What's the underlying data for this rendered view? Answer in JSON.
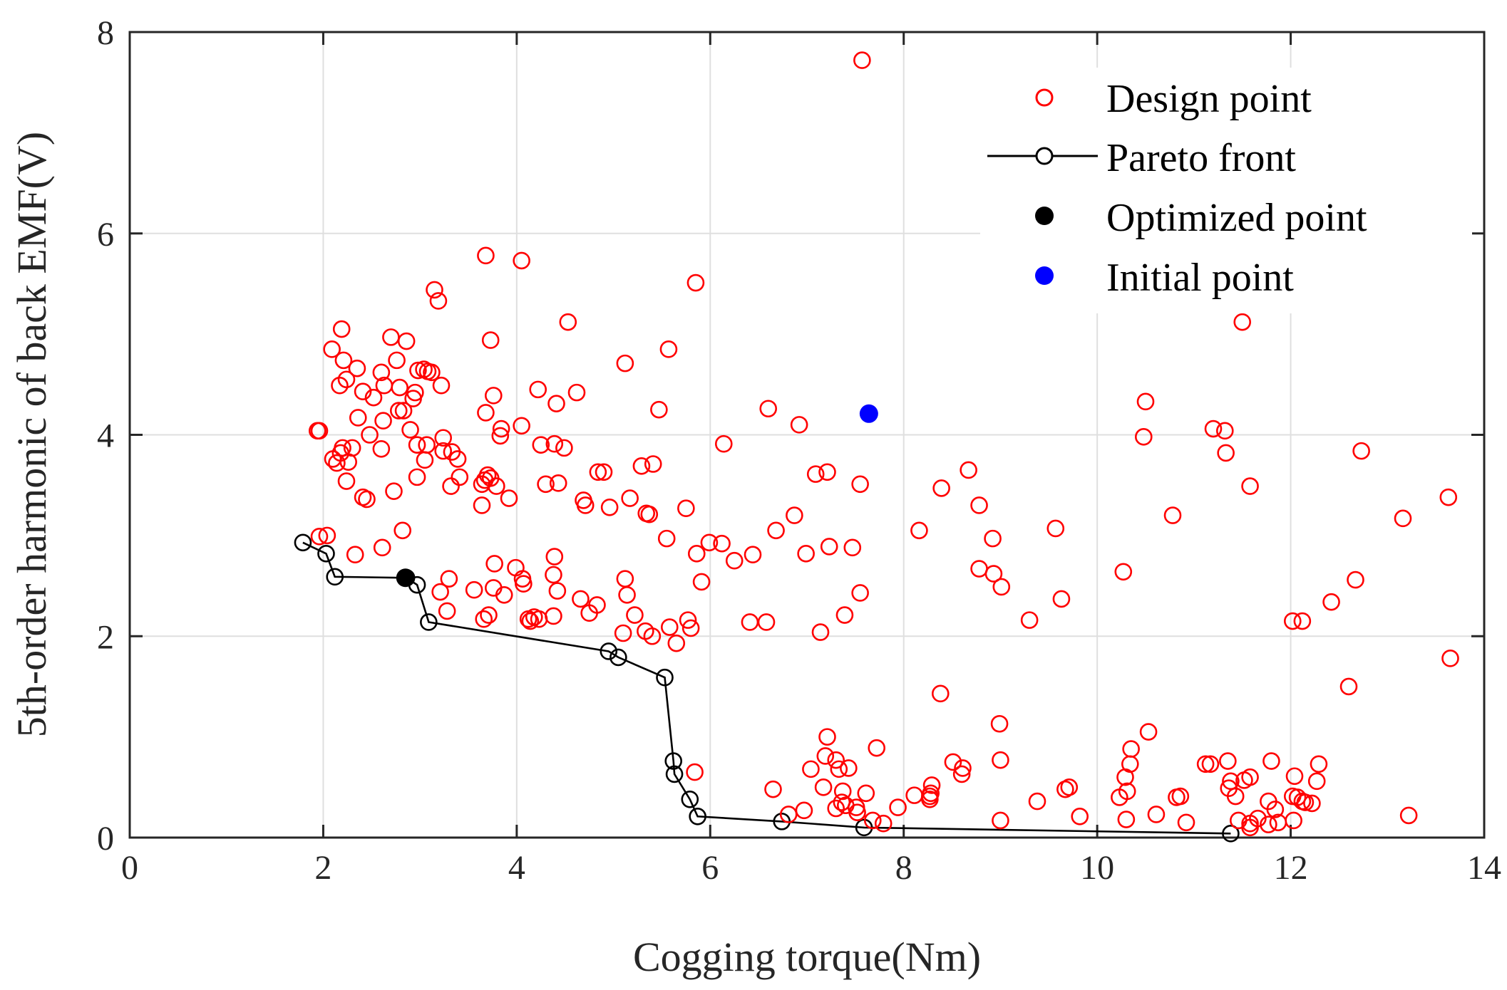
{
  "chart_data": {
    "type": "scatter",
    "title": "",
    "xlabel": "Cogging torque(Nm)",
    "ylabel": "5th-order harmonic of back EMF(V)",
    "xlim": [
      0,
      14
    ],
    "ylim": [
      0,
      8
    ],
    "xticks": [
      "0",
      "2",
      "4",
      "6",
      "8",
      "10",
      "12",
      "14"
    ],
    "yticks": [
      "0",
      "2",
      "4",
      "6",
      "8"
    ],
    "grid": true,
    "legend_position": "top-right",
    "legend": [
      {
        "label": "Design point",
        "marker": "open-circle",
        "color": "#ff0000"
      },
      {
        "label": "Pareto front",
        "marker": "line-open-circle",
        "color": "#000000"
      },
      {
        "label": "Optimized point",
        "marker": "filled-circle",
        "color": "#000000"
      },
      {
        "label": "Initial point",
        "marker": "filled-circle",
        "color": "#0000ff"
      }
    ],
    "series": [
      {
        "name": "Design point",
        "color": "#ff0000",
        "points": [
          [
            7.57,
            7.72
          ],
          [
            3.68,
            5.78
          ],
          [
            4.05,
            5.73
          ],
          [
            5.85,
            5.51
          ],
          [
            3.15,
            5.44
          ],
          [
            3.19,
            5.33
          ],
          [
            11.5,
            5.12
          ],
          [
            4.53,
            5.12
          ],
          [
            2.19,
            5.05
          ],
          [
            2.7,
            4.97
          ],
          [
            2.86,
            4.93
          ],
          [
            3.73,
            4.94
          ],
          [
            5.57,
            4.85
          ],
          [
            2.09,
            4.85
          ],
          [
            2.21,
            4.74
          ],
          [
            2.76,
            4.74
          ],
          [
            5.12,
            4.71
          ],
          [
            2.35,
            4.66
          ],
          [
            2.98,
            4.64
          ],
          [
            3.04,
            4.65
          ],
          [
            3.08,
            4.63
          ],
          [
            3.12,
            4.62
          ],
          [
            2.6,
            4.62
          ],
          [
            2.24,
            4.55
          ],
          [
            2.17,
            4.49
          ],
          [
            2.63,
            4.49
          ],
          [
            2.79,
            4.47
          ],
          [
            3.22,
            4.49
          ],
          [
            2.41,
            4.43
          ],
          [
            2.95,
            4.42
          ],
          [
            4.22,
            4.45
          ],
          [
            4.62,
            4.42
          ],
          [
            2.52,
            4.37
          ],
          [
            2.93,
            4.36
          ],
          [
            3.76,
            4.39
          ],
          [
            4.41,
            4.31
          ],
          [
            10.5,
            4.33
          ],
          [
            2.78,
            4.24
          ],
          [
            2.83,
            4.24
          ],
          [
            3.68,
            4.22
          ],
          [
            5.47,
            4.25
          ],
          [
            6.6,
            4.26
          ],
          [
            2.36,
            4.17
          ],
          [
            2.62,
            4.14
          ],
          [
            1.94,
            4.04
          ],
          [
            1.96,
            4.04
          ],
          [
            2.9,
            4.05
          ],
          [
            3.84,
            4.06
          ],
          [
            4.05,
            4.09
          ],
          [
            6.92,
            4.1
          ],
          [
            11.2,
            4.06
          ],
          [
            11.32,
            4.04
          ],
          [
            2.48,
            4.0
          ],
          [
            3.24,
            3.97
          ],
          [
            3.83,
            3.99
          ],
          [
            10.48,
            3.98
          ],
          [
            2.2,
            3.87
          ],
          [
            2.3,
            3.87
          ],
          [
            2.6,
            3.86
          ],
          [
            2.97,
            3.9
          ],
          [
            3.07,
            3.9
          ],
          [
            4.25,
            3.9
          ],
          [
            4.39,
            3.91
          ],
          [
            4.49,
            3.87
          ],
          [
            6.14,
            3.91
          ],
          [
            2.18,
            3.82
          ],
          [
            3.24,
            3.84
          ],
          [
            3.33,
            3.83
          ],
          [
            11.33,
            3.82
          ],
          [
            12.73,
            3.84
          ],
          [
            2.1,
            3.76
          ],
          [
            2.14,
            3.72
          ],
          [
            2.26,
            3.73
          ],
          [
            3.05,
            3.75
          ],
          [
            3.39,
            3.76
          ],
          [
            2.97,
            3.58
          ],
          [
            3.41,
            3.58
          ],
          [
            3.7,
            3.6
          ],
          [
            3.73,
            3.57
          ],
          [
            5.29,
            3.69
          ],
          [
            5.41,
            3.71
          ],
          [
            7.09,
            3.61
          ],
          [
            7.21,
            3.63
          ],
          [
            8.67,
            3.65
          ],
          [
            2.24,
            3.54
          ],
          [
            3.32,
            3.49
          ],
          [
            3.64,
            3.51
          ],
          [
            3.67,
            3.55
          ],
          [
            3.79,
            3.49
          ],
          [
            4.3,
            3.51
          ],
          [
            4.43,
            3.52
          ],
          [
            4.84,
            3.63
          ],
          [
            4.9,
            3.63
          ],
          [
            7.55,
            3.51
          ],
          [
            8.39,
            3.47
          ],
          [
            11.58,
            3.49
          ],
          [
            2.41,
            3.38
          ],
          [
            2.45,
            3.36
          ],
          [
            2.73,
            3.44
          ],
          [
            3.92,
            3.37
          ],
          [
            4.69,
            3.35
          ],
          [
            5.17,
            3.37
          ],
          [
            13.63,
            3.38
          ],
          [
            3.64,
            3.3
          ],
          [
            4.71,
            3.3
          ],
          [
            4.96,
            3.28
          ],
          [
            5.75,
            3.27
          ],
          [
            8.78,
            3.3
          ],
          [
            5.34,
            3.22
          ],
          [
            5.37,
            3.21
          ],
          [
            6.87,
            3.2
          ],
          [
            10.78,
            3.2
          ],
          [
            13.16,
            3.17
          ],
          [
            2.82,
            3.05
          ],
          [
            1.96,
            2.99
          ],
          [
            2.04,
            3.0
          ],
          [
            6.68,
            3.05
          ],
          [
            8.16,
            3.05
          ],
          [
            9.57,
            3.07
          ],
          [
            5.55,
            2.97
          ],
          [
            8.92,
            2.97
          ],
          [
            2.61,
            2.88
          ],
          [
            5.99,
            2.93
          ],
          [
            6.12,
            2.92
          ],
          [
            7.23,
            2.89
          ],
          [
            7.47,
            2.88
          ],
          [
            2.33,
            2.81
          ],
          [
            4.39,
            2.79
          ],
          [
            5.86,
            2.82
          ],
          [
            6.25,
            2.75
          ],
          [
            6.44,
            2.81
          ],
          [
            6.99,
            2.82
          ],
          [
            3.77,
            2.72
          ],
          [
            3.99,
            2.68
          ],
          [
            8.78,
            2.67
          ],
          [
            8.93,
            2.62
          ],
          [
            10.27,
            2.64
          ],
          [
            3.3,
            2.57
          ],
          [
            4.06,
            2.57
          ],
          [
            4.07,
            2.52
          ],
          [
            4.38,
            2.61
          ],
          [
            5.12,
            2.57
          ],
          [
            5.91,
            2.54
          ],
          [
            12.67,
            2.56
          ],
          [
            3.21,
            2.44
          ],
          [
            3.56,
            2.46
          ],
          [
            3.76,
            2.48
          ],
          [
            3.87,
            2.41
          ],
          [
            4.42,
            2.45
          ],
          [
            5.14,
            2.41
          ],
          [
            7.55,
            2.43
          ],
          [
            9.01,
            2.49
          ],
          [
            9.63,
            2.37
          ],
          [
            12.42,
            2.34
          ],
          [
            3.28,
            2.25
          ],
          [
            4.66,
            2.37
          ],
          [
            4.75,
            2.23
          ],
          [
            4.83,
            2.31
          ],
          [
            5.22,
            2.21
          ],
          [
            3.66,
            2.17
          ],
          [
            3.71,
            2.21
          ],
          [
            4.12,
            2.17
          ],
          [
            4.18,
            2.19
          ],
          [
            4.23,
            2.17
          ],
          [
            4.38,
            2.2
          ],
          [
            5.77,
            2.16
          ],
          [
            6.41,
            2.14
          ],
          [
            6.58,
            2.14
          ],
          [
            7.39,
            2.21
          ],
          [
            9.3,
            2.16
          ],
          [
            12.02,
            2.15
          ],
          [
            12.12,
            2.15
          ],
          [
            4.14,
            2.15
          ],
          [
            5.1,
            2.03
          ],
          [
            5.33,
            2.05
          ],
          [
            5.4,
            2.0
          ],
          [
            5.58,
            2.09
          ],
          [
            5.65,
            1.93
          ],
          [
            5.8,
            2.08
          ],
          [
            7.14,
            2.04
          ],
          [
            13.65,
            1.78
          ],
          [
            12.6,
            1.5
          ],
          [
            8.38,
            1.43
          ],
          [
            8.99,
            1.13
          ],
          [
            10.53,
            1.05
          ],
          [
            7.21,
            1.0
          ],
          [
            10.35,
            0.88
          ],
          [
            7.72,
            0.89
          ],
          [
            12.29,
            0.73
          ],
          [
            11.8,
            0.76
          ],
          [
            11.12,
            0.73
          ],
          [
            11.17,
            0.73
          ],
          [
            11.35,
            0.76
          ],
          [
            10.34,
            0.73
          ],
          [
            7.3,
            0.77
          ],
          [
            7.19,
            0.81
          ],
          [
            8.51,
            0.75
          ],
          [
            8.61,
            0.69
          ],
          [
            9.0,
            0.77
          ],
          [
            7.04,
            0.68
          ],
          [
            7.33,
            0.68
          ],
          [
            7.43,
            0.69
          ],
          [
            5.84,
            0.65
          ],
          [
            8.6,
            0.63
          ],
          [
            10.29,
            0.6
          ],
          [
            11.52,
            0.57
          ],
          [
            12.04,
            0.61
          ],
          [
            12.27,
            0.56
          ],
          [
            11.58,
            0.6
          ],
          [
            11.38,
            0.56
          ],
          [
            11.36,
            0.49
          ],
          [
            7.17,
            0.5
          ],
          [
            8.29,
            0.52
          ],
          [
            9.71,
            0.5
          ],
          [
            9.67,
            0.48
          ],
          [
            6.65,
            0.48
          ],
          [
            7.37,
            0.46
          ],
          [
            7.61,
            0.44
          ],
          [
            8.28,
            0.44
          ],
          [
            10.31,
            0.46
          ],
          [
            8.27,
            0.38
          ],
          [
            8.11,
            0.42
          ],
          [
            8.27,
            0.41
          ],
          [
            10.23,
            0.4
          ],
          [
            10.82,
            0.4
          ],
          [
            10.86,
            0.41
          ],
          [
            11.43,
            0.41
          ],
          [
            12.02,
            0.41
          ],
          [
            12.07,
            0.4
          ],
          [
            12.12,
            0.36
          ],
          [
            12.15,
            0.35
          ],
          [
            12.22,
            0.34
          ],
          [
            11.77,
            0.36
          ],
          [
            11.84,
            0.28
          ],
          [
            9.38,
            0.36
          ],
          [
            7.36,
            0.35
          ],
          [
            7.4,
            0.32
          ],
          [
            7.3,
            0.29
          ],
          [
            7.51,
            0.3
          ],
          [
            7.94,
            0.3
          ],
          [
            6.97,
            0.27
          ],
          [
            7.52,
            0.25
          ],
          [
            6.81,
            0.23
          ],
          [
            10.61,
            0.23
          ],
          [
            9.82,
            0.21
          ],
          [
            7.68,
            0.17
          ],
          [
            7.79,
            0.14
          ],
          [
            9.0,
            0.17
          ],
          [
            10.3,
            0.18
          ],
          [
            10.92,
            0.15
          ],
          [
            11.46,
            0.17
          ],
          [
            11.58,
            0.14
          ],
          [
            11.66,
            0.19
          ],
          [
            11.77,
            0.13
          ],
          [
            11.87,
            0.15
          ],
          [
            12.03,
            0.17
          ],
          [
            13.22,
            0.22
          ],
          [
            11.58,
            0.1
          ]
        ]
      },
      {
        "name": "Pareto front",
        "color": "#000000",
        "points": [
          [
            1.79,
            2.93
          ],
          [
            2.03,
            2.82
          ],
          [
            2.12,
            2.59
          ],
          [
            2.86,
            2.58
          ],
          [
            2.97,
            2.51
          ],
          [
            3.09,
            2.14
          ],
          [
            4.95,
            1.85
          ],
          [
            5.05,
            1.79
          ],
          [
            5.53,
            1.59
          ],
          [
            5.62,
            0.76
          ],
          [
            5.63,
            0.63
          ],
          [
            5.79,
            0.38
          ],
          [
            5.87,
            0.21
          ],
          [
            6.74,
            0.16
          ],
          [
            7.59,
            0.1
          ],
          [
            11.38,
            0.04
          ]
        ]
      },
      {
        "name": "Optimized point",
        "color": "#000000",
        "points": [
          [
            2.85,
            2.58
          ]
        ]
      },
      {
        "name": "Initial point",
        "color": "#0000ff",
        "points": [
          [
            7.64,
            4.21
          ]
        ]
      }
    ]
  }
}
